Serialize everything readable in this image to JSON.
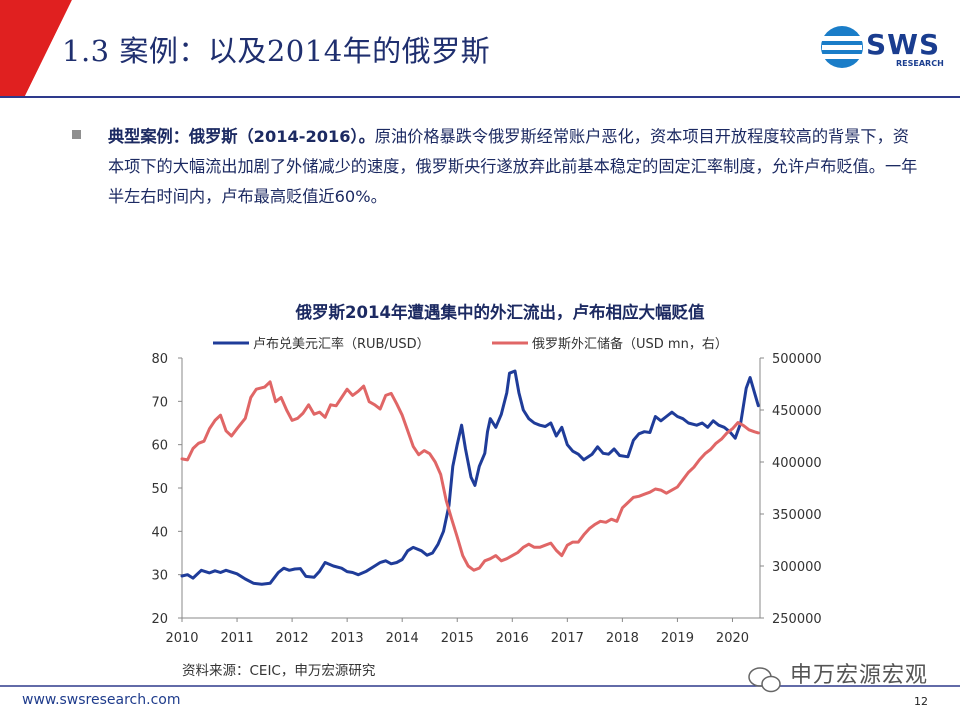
{
  "slide": {
    "title": "1.3 案例：以及2014年的俄罗斯",
    "logo": "SWS",
    "logo_sub": "RESEARCH",
    "bullet_highlight": "典型案例：俄罗斯（2014-2016）。",
    "bullet_text": "原油价格暴跌令俄罗斯经常账户恶化，资本项目开放程度较高的背景下，资本项下的大幅流出加剧了外储减少的速度，俄罗斯央行遂放弃此前基本稳定的固定汇率制度，允许卢布贬值。一年半左右时间内，卢布最高贬值近60%。",
    "source": "资料来源：CEIC，申万宏源研究",
    "footer_url": "www.swsresearch.com",
    "page_number": "12",
    "watermark": "申万宏源宏观"
  },
  "chart_data": {
    "type": "line",
    "title": "俄罗斯2014年遭遇集中的外汇流出，卢布相应大幅贬值",
    "legend_position": "top",
    "x_ticks": [
      "2010",
      "2011",
      "2012",
      "2013",
      "2014",
      "2015",
      "2016",
      "2017",
      "2018",
      "2019",
      "2020"
    ],
    "x_range": [
      2010.0,
      2020.5
    ],
    "y_left": {
      "ticks": [
        "80",
        "70",
        "60",
        "50",
        "40",
        "30",
        "20"
      ],
      "range": [
        20,
        80
      ]
    },
    "y_right": {
      "ticks": [
        "500000",
        "450000",
        "400000",
        "350000",
        "300000",
        "250000"
      ],
      "range": [
        250000,
        500000
      ]
    },
    "grid": false,
    "colors": {
      "rub": "#1f3c99",
      "reserves": "#e06666"
    },
    "series": [
      {
        "name": "卢布兑美元汇率（RUB/USD）",
        "axis": "left",
        "color": "#1f3c99",
        "points": [
          [
            2010.0,
            29.7
          ],
          [
            2010.1,
            30.0
          ],
          [
            2010.2,
            29.2
          ],
          [
            2010.35,
            31.0
          ],
          [
            2010.5,
            30.4
          ],
          [
            2010.6,
            30.9
          ],
          [
            2010.7,
            30.5
          ],
          [
            2010.8,
            31.0
          ],
          [
            2010.9,
            30.6
          ],
          [
            2011.0,
            30.2
          ],
          [
            2011.15,
            29.0
          ],
          [
            2011.3,
            28.0
          ],
          [
            2011.45,
            27.8
          ],
          [
            2011.6,
            28.0
          ],
          [
            2011.75,
            30.5
          ],
          [
            2011.85,
            31.5
          ],
          [
            2011.95,
            31.0
          ],
          [
            2012.05,
            31.3
          ],
          [
            2012.15,
            31.4
          ],
          [
            2012.25,
            29.6
          ],
          [
            2012.4,
            29.4
          ],
          [
            2012.5,
            30.8
          ],
          [
            2012.6,
            32.8
          ],
          [
            2012.75,
            32.0
          ],
          [
            2012.9,
            31.5
          ],
          [
            2013.0,
            30.7
          ],
          [
            2013.1,
            30.5
          ],
          [
            2013.2,
            30.0
          ],
          [
            2013.35,
            30.8
          ],
          [
            2013.5,
            32.0
          ],
          [
            2013.6,
            32.8
          ],
          [
            2013.7,
            33.2
          ],
          [
            2013.8,
            32.5
          ],
          [
            2013.9,
            32.8
          ],
          [
            2014.0,
            33.5
          ],
          [
            2014.1,
            35.5
          ],
          [
            2014.2,
            36.3
          ],
          [
            2014.35,
            35.5
          ],
          [
            2014.45,
            34.5
          ],
          [
            2014.55,
            35.0
          ],
          [
            2014.65,
            37.0
          ],
          [
            2014.75,
            40.0
          ],
          [
            2014.85,
            46.0
          ],
          [
            2014.92,
            55.0
          ],
          [
            2015.0,
            60.0
          ],
          [
            2015.08,
            64.5
          ],
          [
            2015.15,
            59.0
          ],
          [
            2015.25,
            52.5
          ],
          [
            2015.32,
            50.6
          ],
          [
            2015.4,
            55.0
          ],
          [
            2015.5,
            58.0
          ],
          [
            2015.55,
            63.0
          ],
          [
            2015.6,
            66.0
          ],
          [
            2015.7,
            64.0
          ],
          [
            2015.8,
            67.0
          ],
          [
            2015.9,
            72.0
          ],
          [
            2015.95,
            76.5
          ],
          [
            2016.05,
            77.0
          ],
          [
            2016.12,
            72.0
          ],
          [
            2016.2,
            68.0
          ],
          [
            2016.3,
            66.0
          ],
          [
            2016.4,
            65.0
          ],
          [
            2016.5,
            64.5
          ],
          [
            2016.6,
            64.2
          ],
          [
            2016.7,
            65.0
          ],
          [
            2016.8,
            62.0
          ],
          [
            2016.9,
            64.0
          ],
          [
            2017.0,
            60.0
          ],
          [
            2017.1,
            58.5
          ],
          [
            2017.2,
            57.8
          ],
          [
            2017.3,
            56.5
          ],
          [
            2017.45,
            57.8
          ],
          [
            2017.55,
            59.5
          ],
          [
            2017.65,
            58.0
          ],
          [
            2017.75,
            57.8
          ],
          [
            2017.85,
            59.0
          ],
          [
            2017.95,
            57.5
          ],
          [
            2018.1,
            57.2
          ],
          [
            2018.2,
            61.0
          ],
          [
            2018.3,
            62.5
          ],
          [
            2018.4,
            63.0
          ],
          [
            2018.5,
            62.8
          ],
          [
            2018.6,
            66.5
          ],
          [
            2018.7,
            65.5
          ],
          [
            2018.8,
            66.5
          ],
          [
            2018.9,
            67.5
          ],
          [
            2019.0,
            66.5
          ],
          [
            2019.1,
            66.0
          ],
          [
            2019.2,
            65.0
          ],
          [
            2019.35,
            64.5
          ],
          [
            2019.45,
            65.0
          ],
          [
            2019.55,
            64.0
          ],
          [
            2019.65,
            65.5
          ],
          [
            2019.75,
            64.5
          ],
          [
            2019.85,
            64.0
          ],
          [
            2019.95,
            63.0
          ],
          [
            2020.05,
            61.5
          ],
          [
            2020.15,
            65.0
          ],
          [
            2020.25,
            73.0
          ],
          [
            2020.32,
            75.5
          ],
          [
            2020.4,
            72.0
          ],
          [
            2020.47,
            69.0
          ]
        ]
      },
      {
        "name": "俄罗斯外汇储备（USD mn，右）",
        "axis": "right",
        "color": "#e06666",
        "points": [
          [
            2010.0,
            403000
          ],
          [
            2010.1,
            402000
          ],
          [
            2010.2,
            413000
          ],
          [
            2010.3,
            418000
          ],
          [
            2010.4,
            420000
          ],
          [
            2010.5,
            432000
          ],
          [
            2010.6,
            440000
          ],
          [
            2010.7,
            445000
          ],
          [
            2010.8,
            430000
          ],
          [
            2010.9,
            425000
          ],
          [
            2011.0,
            432000
          ],
          [
            2011.15,
            442000
          ],
          [
            2011.25,
            462000
          ],
          [
            2011.35,
            470000
          ],
          [
            2011.5,
            472000
          ],
          [
            2011.6,
            477000
          ],
          [
            2011.7,
            458000
          ],
          [
            2011.8,
            462000
          ],
          [
            2011.9,
            450000
          ],
          [
            2012.0,
            440000
          ],
          [
            2012.1,
            442000
          ],
          [
            2012.2,
            447000
          ],
          [
            2012.3,
            455000
          ],
          [
            2012.4,
            446000
          ],
          [
            2012.5,
            448000
          ],
          [
            2012.6,
            443000
          ],
          [
            2012.7,
            455000
          ],
          [
            2012.8,
            454000
          ],
          [
            2012.9,
            462000
          ],
          [
            2013.0,
            470000
          ],
          [
            2013.1,
            464000
          ],
          [
            2013.2,
            468000
          ],
          [
            2013.3,
            473000
          ],
          [
            2013.4,
            458000
          ],
          [
            2013.5,
            455000
          ],
          [
            2013.6,
            451000
          ],
          [
            2013.7,
            464000
          ],
          [
            2013.8,
            466000
          ],
          [
            2013.9,
            456000
          ],
          [
            2014.0,
            445000
          ],
          [
            2014.1,
            430000
          ],
          [
            2014.2,
            415000
          ],
          [
            2014.3,
            407000
          ],
          [
            2014.4,
            411000
          ],
          [
            2014.5,
            408000
          ],
          [
            2014.6,
            400000
          ],
          [
            2014.7,
            388000
          ],
          [
            2014.8,
            363000
          ],
          [
            2014.9,
            345000
          ],
          [
            2015.0,
            328000
          ],
          [
            2015.1,
            310000
          ],
          [
            2015.2,
            300000
          ],
          [
            2015.3,
            296000
          ],
          [
            2015.4,
            298000
          ],
          [
            2015.5,
            305000
          ],
          [
            2015.6,
            307000
          ],
          [
            2015.7,
            310000
          ],
          [
            2015.8,
            305000
          ],
          [
            2015.9,
            307000
          ],
          [
            2016.0,
            310000
          ],
          [
            2016.1,
            313000
          ],
          [
            2016.2,
            318000
          ],
          [
            2016.3,
            321000
          ],
          [
            2016.4,
            318000
          ],
          [
            2016.5,
            318000
          ],
          [
            2016.6,
            320000
          ],
          [
            2016.7,
            322000
          ],
          [
            2016.8,
            315000
          ],
          [
            2016.9,
            310000
          ],
          [
            2017.0,
            320000
          ],
          [
            2017.1,
            323000
          ],
          [
            2017.2,
            323000
          ],
          [
            2017.3,
            330000
          ],
          [
            2017.4,
            336000
          ],
          [
            2017.5,
            340000
          ],
          [
            2017.6,
            343000
          ],
          [
            2017.7,
            342000
          ],
          [
            2017.8,
            345000
          ],
          [
            2017.9,
            343000
          ],
          [
            2018.0,
            356000
          ],
          [
            2018.1,
            361000
          ],
          [
            2018.2,
            366000
          ],
          [
            2018.3,
            367000
          ],
          [
            2018.4,
            369000
          ],
          [
            2018.5,
            371000
          ],
          [
            2018.6,
            374000
          ],
          [
            2018.7,
            373000
          ],
          [
            2018.8,
            370000
          ],
          [
            2018.9,
            373000
          ],
          [
            2019.0,
            376000
          ],
          [
            2019.1,
            383000
          ],
          [
            2019.2,
            390000
          ],
          [
            2019.3,
            395000
          ],
          [
            2019.4,
            402000
          ],
          [
            2019.5,
            408000
          ],
          [
            2019.6,
            412000
          ],
          [
            2019.7,
            418000
          ],
          [
            2019.8,
            422000
          ],
          [
            2019.9,
            428000
          ],
          [
            2020.0,
            432000
          ],
          [
            2020.1,
            438000
          ],
          [
            2020.2,
            435000
          ],
          [
            2020.3,
            431000
          ],
          [
            2020.4,
            429000
          ],
          [
            2020.47,
            428000
          ]
        ]
      }
    ]
  }
}
